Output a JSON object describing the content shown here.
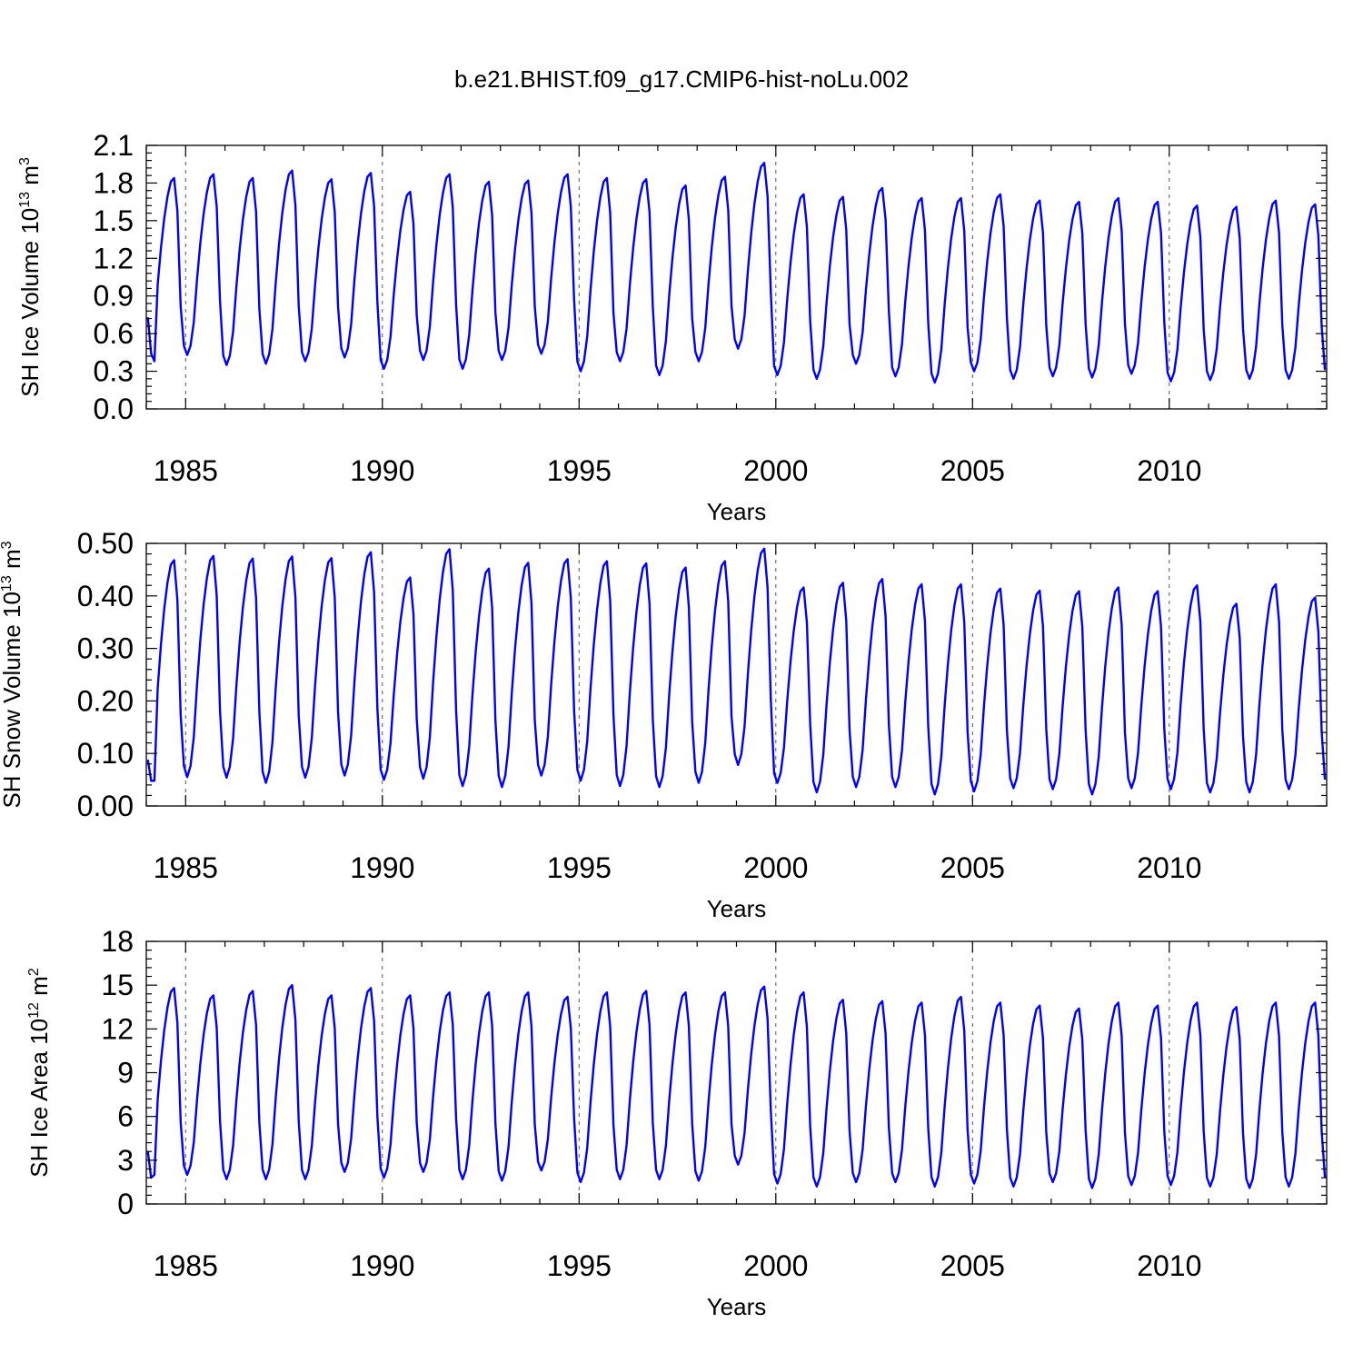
{
  "title": "b.e21.BHIST.f09_g17.CMIP6-hist-noLu.002",
  "colors": {
    "series": "#0000ff",
    "frame": "#000000",
    "refline": "#555555"
  },
  "chart_data": [
    {
      "type": "line",
      "ylabel_main": "SH Ice Volume 10",
      "ylabel_exp": "13",
      "ylabel_unit": " m",
      "ylabel_unit_exp": "3",
      "xlabel": "Years",
      "xlim": [
        1984.0,
        2014.0
      ],
      "ylim": [
        0.0,
        2.1
      ],
      "xticks": [
        1985,
        1990,
        1995,
        2000,
        2005,
        2010
      ],
      "xtick_labels": [
        "1985",
        "1990",
        "1995",
        "2000",
        "2005",
        "2010"
      ],
      "yticks": [
        0.0,
        0.3,
        0.6,
        0.9,
        1.2,
        1.5,
        1.8,
        2.1
      ],
      "ytick_labels": [
        "0.0",
        "0.3",
        "0.6",
        "0.9",
        "1.2",
        "1.5",
        "1.8",
        "2.1"
      ],
      "ref_lines_x": [
        1985,
        1990,
        1995,
        2000,
        2005,
        2010
      ],
      "x_start": 1984.04,
      "x_step": 0.08333333,
      "start_month": 1,
      "annual_min": [
        0.38,
        0.43,
        0.35,
        0.36,
        0.38,
        0.41,
        0.32,
        0.39,
        0.32,
        0.39,
        0.44,
        0.3,
        0.38,
        0.27,
        0.38,
        0.48,
        0.27,
        0.24,
        0.36,
        0.26,
        0.21,
        0.3,
        0.24,
        0.26,
        0.25,
        0.28,
        0.22,
        0.23,
        0.24,
        0.24
      ],
      "annual_max": [
        1.84,
        1.87,
        1.84,
        1.9,
        1.83,
        1.88,
        1.73,
        1.87,
        1.81,
        1.82,
        1.87,
        1.84,
        1.83,
        1.78,
        1.85,
        1.96,
        1.71,
        1.69,
        1.76,
        1.68,
        1.68,
        1.71,
        1.66,
        1.65,
        1.68,
        1.65,
        1.62,
        1.61,
        1.66,
        1.63
      ],
      "series": [
        {
          "values": [
            0.73,
            0.44,
            0.38
          ]
        }
      ]
    },
    {
      "type": "line",
      "ylabel_main": "SH Snow Volume 10",
      "ylabel_exp": "13",
      "ylabel_unit": " m",
      "ylabel_unit_exp": "3",
      "xlabel": "Years",
      "xlim": [
        1984.0,
        2014.0
      ],
      "ylim": [
        0.0,
        0.5
      ],
      "xticks": [
        1985,
        1990,
        1995,
        2000,
        2005,
        2010
      ],
      "xtick_labels": [
        "1985",
        "1990",
        "1995",
        "2000",
        "2005",
        "2010"
      ],
      "yticks": [
        0.0,
        0.1,
        0.2,
        0.3,
        0.4,
        0.5
      ],
      "ytick_labels": [
        "0.00",
        "0.10",
        "0.20",
        "0.30",
        "0.40",
        "0.50"
      ],
      "ref_lines_x": [
        1985,
        1990,
        1995,
        2000,
        2005,
        2010
      ],
      "x_start": 1984.04,
      "x_step": 0.08333333,
      "start_month": 1,
      "annual_min": [
        0.048,
        0.055,
        0.054,
        0.044,
        0.054,
        0.058,
        0.05,
        0.052,
        0.038,
        0.036,
        0.058,
        0.048,
        0.038,
        0.036,
        0.044,
        0.078,
        0.044,
        0.026,
        0.036,
        0.036,
        0.022,
        0.028,
        0.034,
        0.032,
        0.022,
        0.034,
        0.032,
        0.026,
        0.026,
        0.032
      ],
      "annual_max": [
        0.468,
        0.476,
        0.471,
        0.475,
        0.472,
        0.483,
        0.435,
        0.489,
        0.452,
        0.463,
        0.47,
        0.466,
        0.462,
        0.454,
        0.466,
        0.49,
        0.416,
        0.425,
        0.432,
        0.422,
        0.422,
        0.414,
        0.41,
        0.409,
        0.416,
        0.409,
        0.42,
        0.385,
        0.422,
        0.397
      ],
      "series": [
        {
          "values": [
            0.088,
            0.048,
            0.048
          ]
        }
      ]
    },
    {
      "type": "line",
      "ylabel_main": "SH Ice Area 10",
      "ylabel_exp": "12",
      "ylabel_unit": " m",
      "ylabel_unit_exp": "2",
      "xlabel": "Years",
      "xlim": [
        1984.0,
        2014.0
      ],
      "ylim": [
        0,
        18
      ],
      "xticks": [
        1985,
        1990,
        1995,
        2000,
        2005,
        2010
      ],
      "xtick_labels": [
        "1985",
        "1990",
        "1995",
        "2000",
        "2005",
        "2010"
      ],
      "yticks": [
        0,
        3,
        6,
        9,
        12,
        15,
        18
      ],
      "ytick_labels": [
        "0",
        "3",
        "6",
        "9",
        "12",
        "15",
        "18"
      ],
      "ref_lines_x": [
        1985,
        1990,
        1995,
        2000,
        2005,
        2010
      ],
      "x_start": 1984.04,
      "x_step": 0.08333333,
      "start_month": 1,
      "annual_min": [
        1.7,
        2.0,
        1.7,
        1.7,
        1.7,
        2.2,
        1.8,
        2.2,
        1.7,
        1.6,
        2.3,
        1.5,
        1.7,
        1.7,
        1.6,
        2.7,
        1.4,
        1.2,
        1.5,
        1.5,
        1.2,
        1.4,
        1.2,
        1.5,
        1.1,
        1.3,
        1.3,
        1.2,
        1.1,
        1.2
      ],
      "annual_max": [
        14.8,
        14.3,
        14.6,
        15.0,
        14.3,
        14.8,
        14.3,
        14.5,
        14.5,
        14.5,
        14.2,
        14.5,
        14.6,
        14.5,
        14.5,
        14.9,
        14.5,
        14.0,
        13.9,
        13.8,
        14.2,
        13.8,
        13.6,
        13.4,
        13.8,
        13.6,
        13.8,
        13.5,
        13.8,
        13.8
      ],
      "series": [
        {
          "values": [
            3.6,
            1.8,
            2.0
          ]
        }
      ]
    }
  ]
}
